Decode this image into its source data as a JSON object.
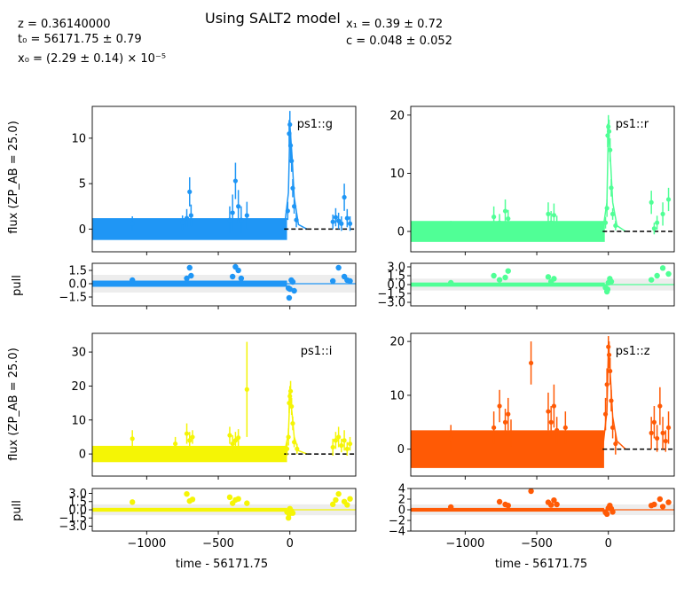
{
  "title": "Using SALT2 model",
  "params": {
    "z": "z = 0.36140000",
    "t0": "t₀ = 56171.75 ± 0.79",
    "x0": "x₀ = (2.29 ± 0.14) × 10⁻⁵",
    "x1": "x₁ = 0.39 ± 0.72",
    "c": "c = 0.048 ± 0.052"
  },
  "labels": {
    "flux_ylabel": "flux (ZP_AB = 25.0)",
    "pull_ylabel": "pull",
    "xlabel": "time - 56171.75"
  },
  "chart_data": {
    "type": "scatter",
    "x_range": [
      -1380,
      460
    ],
    "x_ticks": [
      -1000,
      -500,
      0
    ],
    "x_ticks_text": [
      "−1000",
      "−500",
      "0"
    ],
    "bands": [
      {
        "name": "ps1::g",
        "color": "#1f96f5",
        "flux_ylim": [
          -2.5,
          13.5
        ],
        "flux_ticks": [
          0,
          5,
          10
        ],
        "flux_ticks_text": [
          "0",
          "5",
          "10"
        ],
        "pull_ylim": [
          -2.5,
          2.3
        ],
        "pull_ticks": [
          -1.5,
          0,
          1.5
        ],
        "pull_ticks_text": [
          "−1.5",
          "0.0",
          "1.5"
        ],
        "baseline_end": -20,
        "baseline_band": [
          -1.2,
          1.2
        ],
        "points": [
          [
            -1100,
            0.6,
            0.8
          ],
          [
            -750,
            0.7,
            0.8
          ],
          [
            -720,
            1.2,
            1.0
          ],
          [
            -700,
            4.1,
            1.6
          ],
          [
            -690,
            1.5,
            1.2
          ],
          [
            -420,
            1.0,
            1.5
          ],
          [
            -400,
            1.8,
            2.0
          ],
          [
            -380,
            5.3,
            2.0
          ],
          [
            -360,
            2.5,
            1.8
          ],
          [
            -340,
            1.0,
            1.5
          ],
          [
            -300,
            1.5,
            1.5
          ],
          [
            -15,
            2.0,
            1.0
          ],
          [
            -5,
            10.5,
            1.5
          ],
          [
            0,
            11.5,
            1.5
          ],
          [
            5,
            9.2,
            1.5
          ],
          [
            12,
            7.5,
            1.2
          ],
          [
            20,
            4.5,
            1.0
          ],
          [
            30,
            2.5,
            0.8
          ],
          [
            45,
            1.0,
            0.8
          ],
          [
            300,
            0.8,
            0.8
          ],
          [
            320,
            1.3,
            1.0
          ],
          [
            340,
            0.9,
            0.9
          ],
          [
            360,
            0.6,
            0.8
          ],
          [
            380,
            3.5,
            1.5
          ],
          [
            400,
            1.2,
            1.0
          ],
          [
            420,
            0.6,
            0.8
          ]
        ],
        "pulls": [
          [
            -1100,
            0.4
          ],
          [
            -720,
            0.6
          ],
          [
            -700,
            1.8
          ],
          [
            -690,
            0.9
          ],
          [
            -400,
            0.8
          ],
          [
            -380,
            1.9
          ],
          [
            -360,
            1.5
          ],
          [
            -340,
            0.6
          ],
          [
            -10,
            -0.5
          ],
          [
            -5,
            -1.6
          ],
          [
            0,
            -0.6
          ],
          [
            10,
            0.4
          ],
          [
            20,
            0.2
          ],
          [
            30,
            -0.8
          ],
          [
            300,
            0.3
          ],
          [
            340,
            1.8
          ],
          [
            380,
            0.8
          ],
          [
            400,
            0.4
          ],
          [
            420,
            0.3
          ]
        ],
        "model": [
          [
            -40,
            0
          ],
          [
            -10,
            4
          ],
          [
            0,
            11.4
          ],
          [
            15,
            8
          ],
          [
            30,
            3.5
          ],
          [
            60,
            0.5
          ],
          [
            120,
            0
          ]
        ]
      },
      {
        "name": "ps1::r",
        "color": "#50ff96",
        "flux_ylim": [
          -3.5,
          21.5
        ],
        "flux_ticks": [
          0,
          10,
          20
        ],
        "flux_ticks_text": [
          "0",
          "10",
          "20"
        ],
        "pull_ylim": [
          -3.6,
          3.6
        ],
        "pull_ticks": [
          -3.0,
          -1.5,
          0,
          1.5,
          3.0
        ],
        "pull_ticks_text": [
          "−3.0",
          "−1.5",
          "0.0",
          "1.5",
          "3.0"
        ],
        "baseline_end": -25,
        "baseline_band": [
          -1.8,
          1.8
        ],
        "points": [
          [
            -1100,
            0.8,
            1.0
          ],
          [
            -800,
            2.5,
            1.8
          ],
          [
            -760,
            1.5,
            1.5
          ],
          [
            -720,
            3.5,
            2.0
          ],
          [
            -700,
            2.2,
            1.5
          ],
          [
            -420,
            3.0,
            2.0
          ],
          [
            -400,
            1.5,
            2.0
          ],
          [
            -380,
            2.8,
            2.0
          ],
          [
            -360,
            1.2,
            1.5
          ],
          [
            -20,
            1.5,
            1.0
          ],
          [
            -10,
            4.0,
            1.5
          ],
          [
            -5,
            16.5,
            2.0
          ],
          [
            0,
            18.0,
            2.0
          ],
          [
            5,
            17.2,
            2.0
          ],
          [
            12,
            14.0,
            2.0
          ],
          [
            20,
            7.5,
            1.5
          ],
          [
            30,
            3.0,
            1.0
          ],
          [
            50,
            1.0,
            0.8
          ],
          [
            300,
            5.0,
            2.0
          ],
          [
            320,
            0.5,
            1.0
          ],
          [
            340,
            1.5,
            1.2
          ],
          [
            380,
            3.0,
            2.0
          ],
          [
            420,
            5.5,
            2.0
          ]
        ],
        "pulls": [
          [
            -1100,
            0.3
          ],
          [
            -800,
            1.5
          ],
          [
            -760,
            0.8
          ],
          [
            -720,
            1.2
          ],
          [
            -700,
            2.3
          ],
          [
            -420,
            1.3
          ],
          [
            -400,
            0.5
          ],
          [
            -380,
            1.0
          ],
          [
            -20,
            -0.5
          ],
          [
            -10,
            -1.2
          ],
          [
            -5,
            -0.8
          ],
          [
            0,
            0.3
          ],
          [
            10,
            1.0
          ],
          [
            20,
            0.5
          ],
          [
            300,
            0.8
          ],
          [
            340,
            1.5
          ],
          [
            380,
            2.8
          ],
          [
            420,
            1.8
          ]
        ],
        "model": [
          [
            -40,
            0
          ],
          [
            -10,
            5
          ],
          [
            0,
            18
          ],
          [
            15,
            12
          ],
          [
            30,
            5
          ],
          [
            60,
            1
          ],
          [
            120,
            0
          ]
        ]
      },
      {
        "name": "ps1::i",
        "color": "#f5f505",
        "flux_ylim": [
          -6.5,
          35.5
        ],
        "flux_ticks": [
          0,
          10,
          20,
          30
        ],
        "flux_ticks_text": [
          "0",
          "10",
          "20",
          "30"
        ],
        "pull_ylim": [
          -3.9,
          3.9
        ],
        "pull_ticks": [
          -3.0,
          -1.5,
          0,
          1.5,
          3.0
        ],
        "pull_ticks_text": [
          "−3.0",
          "−1.5",
          "0.0",
          "1.5",
          "3.0"
        ],
        "baseline_end": -20,
        "baseline_band": [
          -2.4,
          2.4
        ],
        "points": [
          [
            -1100,
            4.5,
            2.5
          ],
          [
            -800,
            3.0,
            2.0
          ],
          [
            -720,
            6.0,
            3.0
          ],
          [
            -700,
            4.0,
            2.5
          ],
          [
            -680,
            5.0,
            2.0
          ],
          [
            -420,
            5.5,
            2.5
          ],
          [
            -400,
            3.0,
            2.5
          ],
          [
            -380,
            4.0,
            2.5
          ],
          [
            -360,
            4.8,
            2.5
          ],
          [
            -300,
            19.0,
            14.0
          ],
          [
            -20,
            1.5,
            2.0
          ],
          [
            -10,
            5.0,
            2.5
          ],
          [
            -5,
            15.0,
            3.0
          ],
          [
            0,
            17.0,
            3.0
          ],
          [
            5,
            18.5,
            3.0
          ],
          [
            12,
            14.0,
            2.5
          ],
          [
            20,
            9.0,
            2.0
          ],
          [
            30,
            3.5,
            1.5
          ],
          [
            50,
            1.5,
            1.5
          ],
          [
            300,
            2.0,
            2.5
          ],
          [
            320,
            4.0,
            2.5
          ],
          [
            340,
            5.0,
            3.0
          ],
          [
            360,
            2.5,
            2.0
          ],
          [
            380,
            4.0,
            3.0
          ],
          [
            400,
            1.5,
            2.0
          ],
          [
            420,
            3.0,
            2.0
          ]
        ],
        "pulls": [
          [
            -1100,
            1.4
          ],
          [
            -720,
            2.9
          ],
          [
            -700,
            1.6
          ],
          [
            -680,
            1.9
          ],
          [
            -420,
            2.3
          ],
          [
            -400,
            1.2
          ],
          [
            -380,
            1.8
          ],
          [
            -360,
            2.0
          ],
          [
            -300,
            1.2
          ],
          [
            -20,
            -0.4
          ],
          [
            -10,
            -1.5
          ],
          [
            -5,
            -0.8
          ],
          [
            0,
            0.2
          ],
          [
            10,
            -0.2
          ],
          [
            20,
            -0.6
          ],
          [
            300,
            1.0
          ],
          [
            320,
            1.8
          ],
          [
            340,
            2.9
          ],
          [
            380,
            1.5
          ],
          [
            400,
            0.9
          ],
          [
            420,
            2.0
          ]
        ],
        "model": [
          [
            -40,
            0
          ],
          [
            -10,
            6
          ],
          [
            0,
            17.5
          ],
          [
            15,
            12
          ],
          [
            30,
            5
          ],
          [
            60,
            1
          ],
          [
            120,
            0
          ]
        ]
      },
      {
        "name": "ps1::z",
        "color": "#ff5a05",
        "flux_ylim": [
          -5.0,
          21.5
        ],
        "flux_ticks": [
          0,
          10,
          20
        ],
        "flux_ticks_text": [
          "0",
          "10",
          "20"
        ],
        "pull_ylim": [
          -4.0,
          4.0
        ],
        "pull_ticks": [
          -4,
          -2,
          0,
          2,
          4
        ],
        "pull_ticks_text": [
          "−4",
          "−2",
          "0",
          "2",
          "4"
        ],
        "baseline_end": -30,
        "baseline_band": [
          -3.5,
          3.5
        ],
        "points": [
          [
            -1100,
            2.0,
            2.5
          ],
          [
            -800,
            4.0,
            3.0
          ],
          [
            -760,
            8.0,
            3.0
          ],
          [
            -720,
            5.0,
            2.5
          ],
          [
            -700,
            6.5,
            3.0
          ],
          [
            -680,
            3.0,
            2.5
          ],
          [
            -540,
            16.0,
            4.0
          ],
          [
            -420,
            7.0,
            3.5
          ],
          [
            -400,
            5.0,
            3.0
          ],
          [
            -380,
            8.0,
            4.0
          ],
          [
            -360,
            3.5,
            2.5
          ],
          [
            -300,
            4.0,
            3.0
          ],
          [
            -20,
            6.5,
            3.0
          ],
          [
            -10,
            12.0,
            3.0
          ],
          [
            0,
            19.0,
            2.0
          ],
          [
            5,
            17.5,
            2.5
          ],
          [
            12,
            14.5,
            2.5
          ],
          [
            20,
            9.0,
            2.0
          ],
          [
            30,
            4.0,
            2.0
          ],
          [
            50,
            1.0,
            2.0
          ],
          [
            300,
            3.0,
            3.0
          ],
          [
            320,
            5.0,
            3.0
          ],
          [
            340,
            2.0,
            2.5
          ],
          [
            360,
            8.0,
            3.5
          ],
          [
            380,
            3.0,
            3.0
          ],
          [
            400,
            1.5,
            2.0
          ],
          [
            420,
            4.0,
            3.0
          ]
        ],
        "pulls": [
          [
            -1100,
            0.5
          ],
          [
            -760,
            1.5
          ],
          [
            -720,
            1.0
          ],
          [
            -700,
            0.8
          ],
          [
            -540,
            3.5
          ],
          [
            -420,
            1.4
          ],
          [
            -400,
            0.9
          ],
          [
            -380,
            1.8
          ],
          [
            -360,
            1.0
          ],
          [
            -20,
            -0.5
          ],
          [
            -10,
            -0.8
          ],
          [
            0,
            0.3
          ],
          [
            10,
            0.8
          ],
          [
            20,
            0.2
          ],
          [
            30,
            -0.4
          ],
          [
            300,
            0.8
          ],
          [
            320,
            1.0
          ],
          [
            360,
            2.0
          ],
          [
            380,
            0.6
          ],
          [
            420,
            1.4
          ]
        ],
        "model": [
          [
            -40,
            0
          ],
          [
            -10,
            7
          ],
          [
            0,
            19
          ],
          [
            15,
            13
          ],
          [
            30,
            6
          ],
          [
            60,
            1.5
          ],
          [
            120,
            0
          ]
        ]
      }
    ]
  }
}
